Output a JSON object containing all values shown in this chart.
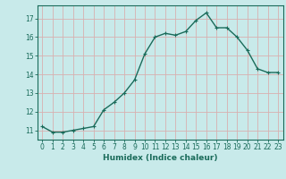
{
  "x": [
    0,
    1,
    2,
    3,
    4,
    5,
    6,
    7,
    8,
    9,
    10,
    11,
    12,
    13,
    14,
    15,
    16,
    17,
    18,
    19,
    20,
    21,
    22,
    23
  ],
  "y": [
    11.2,
    10.9,
    10.9,
    11.0,
    11.1,
    11.2,
    12.1,
    12.5,
    13.0,
    13.7,
    15.1,
    16.0,
    16.2,
    16.1,
    16.3,
    16.9,
    17.3,
    16.5,
    16.5,
    16.0,
    15.3,
    14.3,
    14.1,
    14.1
  ],
  "line_color": "#1a6b5a",
  "marker": "+",
  "markersize": 3,
  "linewidth": 1.0,
  "xlabel": "Humidex (Indice chaleur)",
  "bg_color": "#c8eaea",
  "grid_color": "#d8b0b0",
  "yticks": [
    11,
    12,
    13,
    14,
    15,
    16,
    17
  ],
  "xticks": [
    0,
    1,
    2,
    3,
    4,
    5,
    6,
    7,
    8,
    9,
    10,
    11,
    12,
    13,
    14,
    15,
    16,
    17,
    18,
    19,
    20,
    21,
    22,
    23
  ],
  "ylim": [
    10.5,
    17.7
  ],
  "xlim": [
    -0.5,
    23.5
  ],
  "tick_fontsize": 5.5,
  "xlabel_fontsize": 6.5,
  "spine_color": "#1a6b5a"
}
